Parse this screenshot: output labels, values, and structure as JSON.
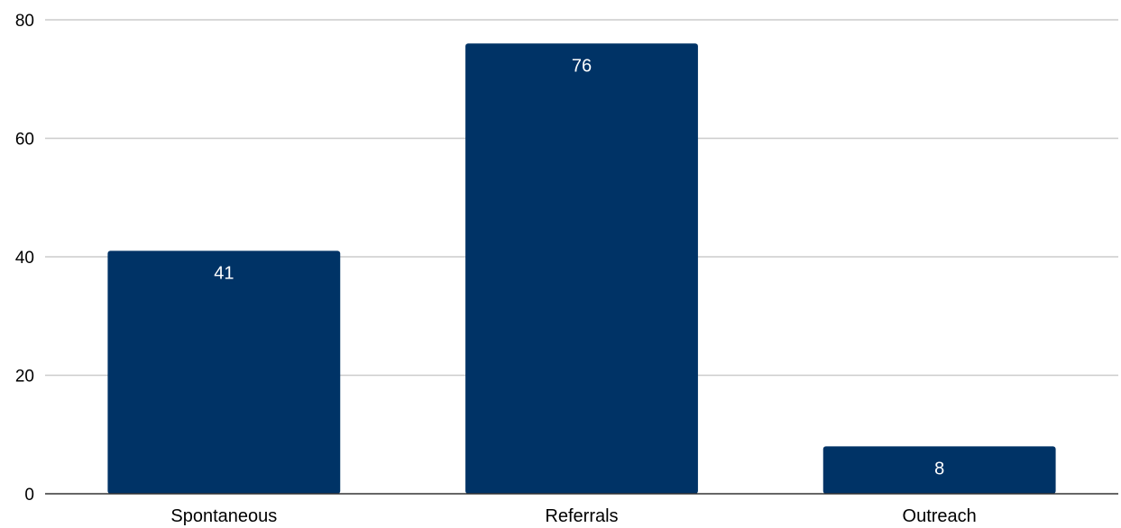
{
  "chart_data": {
    "type": "bar",
    "title": "",
    "xlabel": "",
    "ylabel": "",
    "categories": [
      "Spontaneous",
      "Referrals",
      "Outreach"
    ],
    "values": [
      41,
      76,
      8
    ],
    "ylim": [
      0,
      80
    ],
    "yticks": [
      0,
      20,
      40,
      60,
      80
    ],
    "grid": true,
    "legend": "none",
    "data_labels": true,
    "colors": {
      "bar": "#003366",
      "grid": "#cccccc",
      "axis": "#333333",
      "label_on_bar": "#ffffff",
      "text": "#000000"
    }
  }
}
